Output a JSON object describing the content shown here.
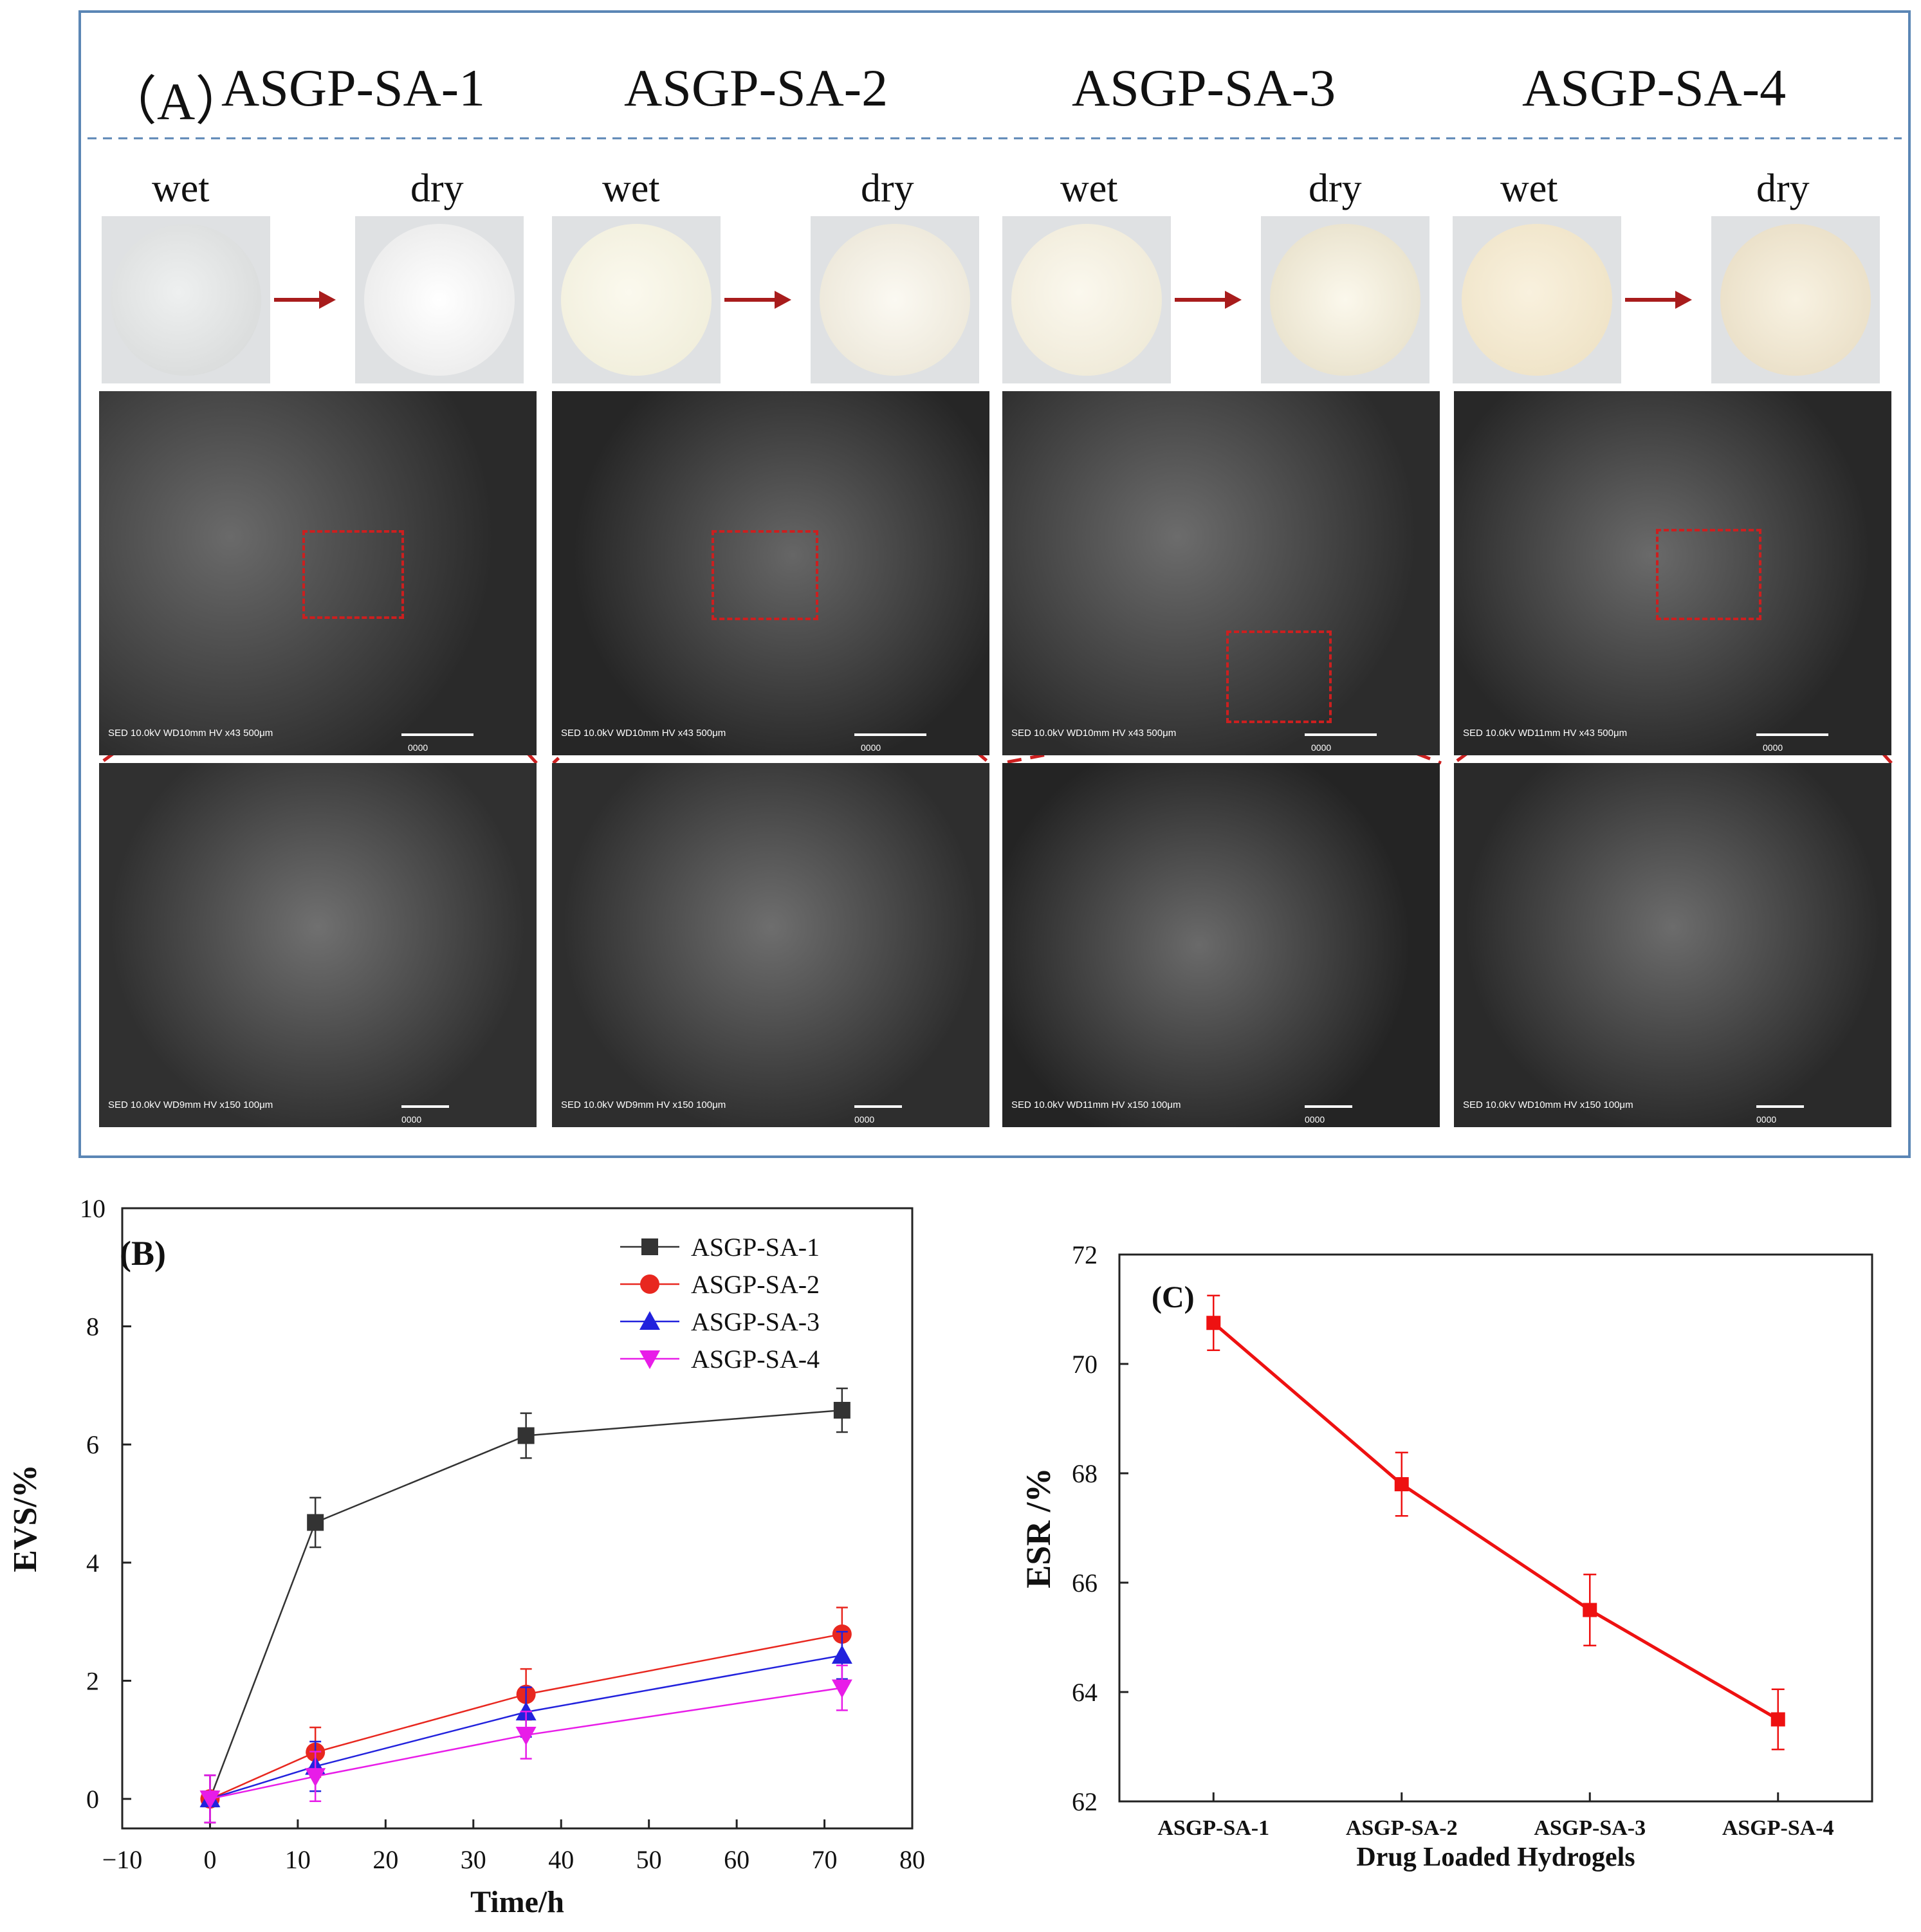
{
  "panel_a": {
    "label": "（A）",
    "samples": [
      "ASGP-SA-1",
      "ASGP-SA-2",
      "ASGP-SA-3",
      "ASGP-SA-4"
    ],
    "wet_label": "wet",
    "dry_label": "dry",
    "sem_top": [
      {
        "caption": "SED 10.0kV WD10mm      HV    x43      500μm",
        "code": "0000"
      },
      {
        "caption": "SED 10.0kV WD10mm      HV    x43      500μm",
        "code": "0000"
      },
      {
        "caption": "SED 10.0kV WD10mm      HV    x43      500μm",
        "code": "0000"
      },
      {
        "caption": "SED 10.0kV WD11mm      HV    x43      500μm",
        "code": "0000"
      }
    ],
    "sem_bottom": [
      {
        "caption": "SED 10.0kV WD9mm       HV    x150     100μm",
        "code": "0000"
      },
      {
        "caption": "SED 10.0kV WD9mm       HV    x150     100μm",
        "code": "0000"
      },
      {
        "caption": "SED 10.0kV WD11mm      HV    x150     100μm",
        "code": "0000"
      },
      {
        "caption": "SED 10.0kV WD10mm      HV    x150     100μm",
        "code": "0000"
      }
    ],
    "colors": {
      "border": "#5b86b5",
      "arrow": "#a81c1c",
      "zoom_box": "#cc1f1f"
    }
  },
  "chart_data": [
    {
      "panel": "(B)",
      "type": "line",
      "xlabel": "Time/h",
      "ylabel": "EVS/%",
      "xlim": [
        -10,
        80
      ],
      "ylim": [
        -0.5,
        10
      ],
      "xticks": [
        -10,
        0,
        10,
        20,
        30,
        40,
        50,
        60,
        70,
        80
      ],
      "yticks": [
        0,
        2,
        4,
        6,
        8,
        10
      ],
      "x": [
        0,
        12,
        36,
        72
      ],
      "legend_position": "top-right",
      "grid": false,
      "series": [
        {
          "name": "ASGP-SA-1",
          "values": [
            0,
            4.68,
            6.15,
            6.58
          ],
          "errors": [
            0.4,
            0.42,
            0.38,
            0.37
          ],
          "color": "#333333",
          "marker": "square"
        },
        {
          "name": "ASGP-SA-2",
          "values": [
            0,
            0.79,
            1.77,
            2.79
          ],
          "errors": [
            0.4,
            0.42,
            0.43,
            0.45
          ],
          "color": "#e8271f",
          "marker": "circle"
        },
        {
          "name": "ASGP-SA-3",
          "values": [
            0,
            0.55,
            1.47,
            2.43
          ],
          "errors": [
            0.4,
            0.42,
            0.42,
            0.4
          ],
          "color": "#2222dd",
          "marker": "triangle-up"
        },
        {
          "name": "ASGP-SA-4",
          "values": [
            0,
            0.38,
            1.08,
            1.88
          ],
          "errors": [
            0.4,
            0.42,
            0.4,
            0.38
          ],
          "color": "#e81ce8",
          "marker": "triangle-down"
        }
      ]
    },
    {
      "panel": "(C)",
      "type": "line",
      "xlabel": "Drug Loaded Hydrogels",
      "ylabel": "ESR /%",
      "categories": [
        "ASGP-SA-1",
        "ASGP-SA-2",
        "ASGP-SA-3",
        "ASGP-SA-4"
      ],
      "ylim": [
        62,
        72
      ],
      "yticks": [
        62,
        64,
        66,
        68,
        70,
        72
      ],
      "grid": false,
      "series": [
        {
          "values": [
            70.75,
            67.8,
            65.5,
            63.5
          ],
          "errors": [
            0.5,
            0.58,
            0.65,
            0.55
          ],
          "color": "#ee1111",
          "marker": "square"
        }
      ]
    }
  ]
}
